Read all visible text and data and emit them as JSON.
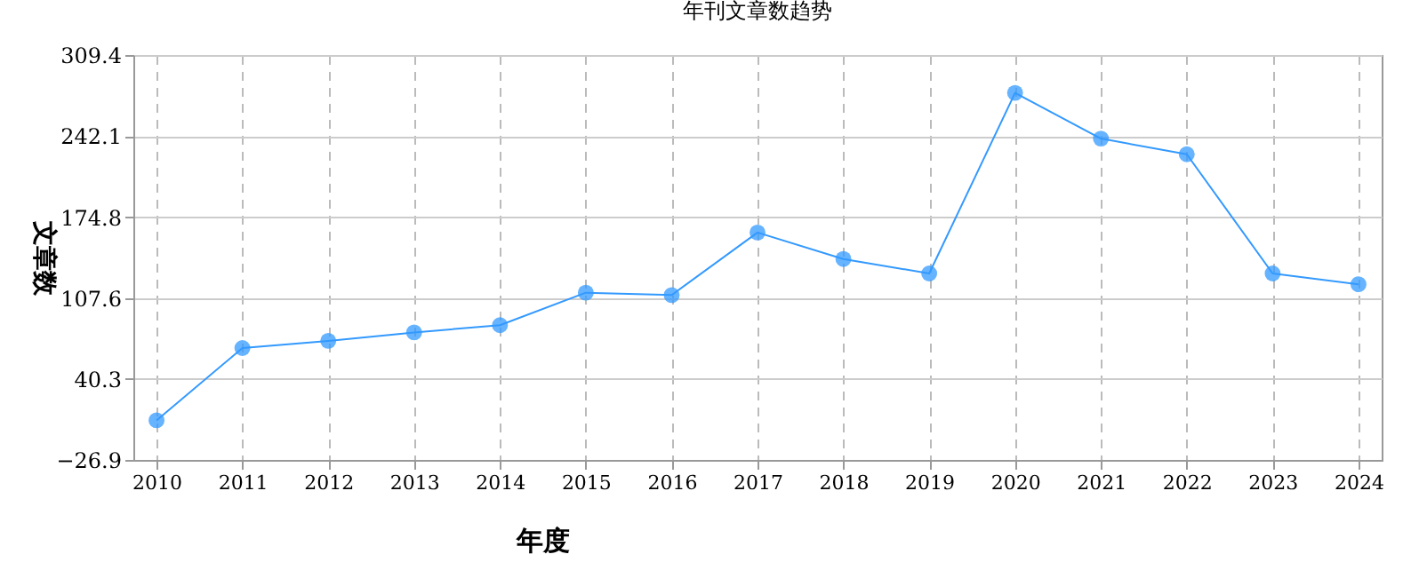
{
  "chart_data": {
    "type": "line",
    "title": "年刊文章数趋势",
    "xlabel": "年度",
    "ylabel": "文章数",
    "categories": [
      "2010",
      "2011",
      "2012",
      "2013",
      "2014",
      "2015",
      "2016",
      "2017",
      "2018",
      "2019",
      "2020",
      "2021",
      "2022",
      "2023",
      "2024"
    ],
    "series": [
      {
        "color": "#3399ff",
        "values": [
          6,
          66,
          72,
          79,
          85,
          112,
          110,
          162,
          140,
          128,
          278,
          240,
          227,
          128,
          119
        ]
      }
    ],
    "ylim": [
      -26.9,
      309.4
    ],
    "yticks": [
      -26.9,
      40.3,
      107.6,
      174.8,
      242.1,
      309.4
    ],
    "grid": true,
    "marker": "circle",
    "legend": false
  }
}
